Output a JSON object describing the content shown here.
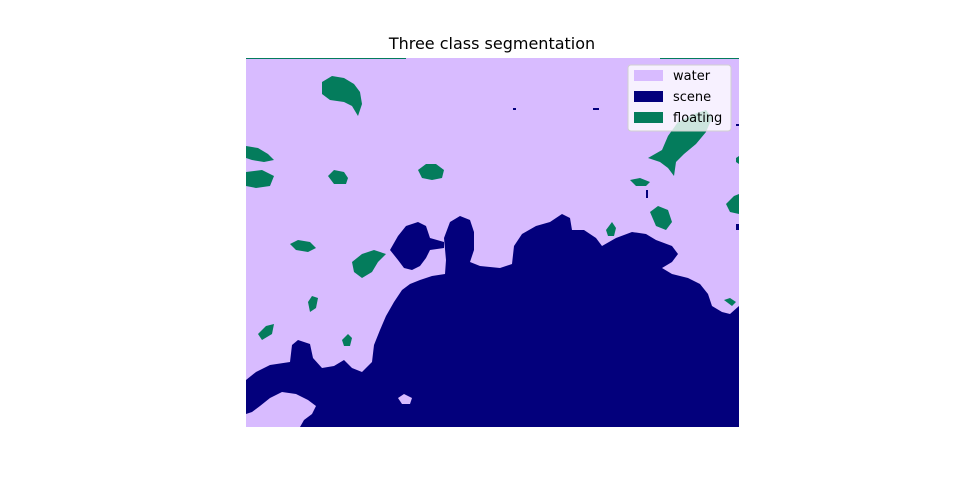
{
  "chart_data": {
    "type": "heatmap",
    "title": "Three class segmentation",
    "xlabel": "",
    "ylabel": "",
    "axes_visible": false,
    "legend": {
      "placement": "top-right",
      "entries": [
        {
          "label": "water",
          "color": "#d8bbff"
        },
        {
          "label": "scene",
          "color": "#03007c"
        },
        {
          "label": "floating",
          "color": "#047c5c"
        }
      ]
    },
    "classes": [
      "water",
      "scene",
      "floating"
    ]
  },
  "colors": {
    "water": "#d8bbff",
    "scene": "#03007c",
    "floating": "#047c5c",
    "background": "#ffffff"
  }
}
